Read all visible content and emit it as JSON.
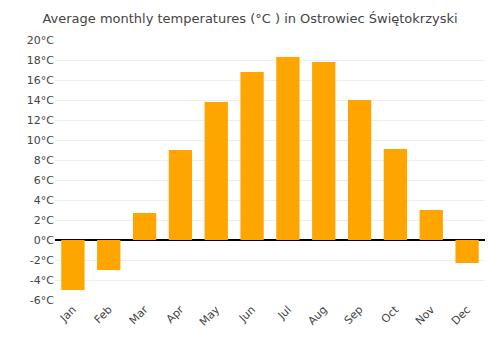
{
  "chart_data": {
    "type": "bar",
    "title": "Average monthly temperatures (°C ) in Ostrowiec Świętokrzyski",
    "categories": [
      "Jan",
      "Feb",
      "Mar",
      "Apr",
      "May",
      "Jun",
      "Jul",
      "Aug",
      "Sep",
      "Oct",
      "Nov",
      "Dec"
    ],
    "values": [
      -5.0,
      -3.0,
      2.7,
      9.0,
      13.8,
      16.8,
      18.3,
      17.8,
      14.0,
      9.1,
      3.0,
      -2.3
    ],
    "color": "#FFA500",
    "ylim": [
      -6,
      20
    ],
    "yticks": [
      {
        "value": -6,
        "label": "-6°C"
      },
      {
        "value": -4,
        "label": "-4°C"
      },
      {
        "value": -2,
        "label": "-2°C"
      },
      {
        "value": 0,
        "label": "0°C"
      },
      {
        "value": 2,
        "label": "2°C"
      },
      {
        "value": 4,
        "label": "4°C"
      },
      {
        "value": 6,
        "label": "6°C"
      },
      {
        "value": 8,
        "label": "8°C"
      },
      {
        "value": 10,
        "label": "10°C"
      },
      {
        "value": 12,
        "label": "12°C"
      },
      {
        "value": 14,
        "label": "14°C"
      },
      {
        "value": 16,
        "label": "16°C"
      },
      {
        "value": 18,
        "label": "18°C"
      },
      {
        "value": 20,
        "label": "20°C"
      }
    ],
    "grid": true
  }
}
